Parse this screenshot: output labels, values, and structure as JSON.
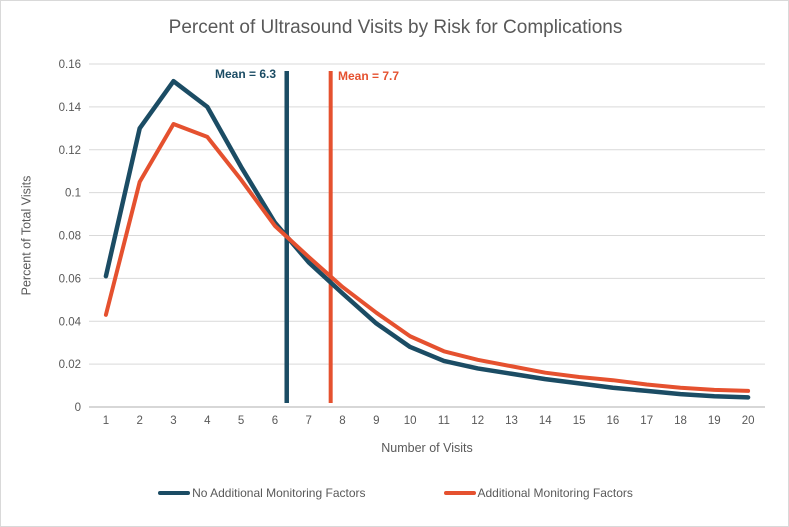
{
  "title": "Percent of Ultrasound Visits by Risk for Complications",
  "colors": {
    "blue": "#1B4C64",
    "red": "#E5512F",
    "title_text": "#595959",
    "axis_text": "#595959",
    "gridline": "#D9D9D9",
    "axis_line": "#BFBFBF",
    "border": "#D9D9D9"
  },
  "annotations": {
    "blue_mean_label": "Mean = 6.3",
    "red_mean_label": "Mean = 7.7"
  },
  "legend": [
    {
      "label": "No Additional Monitoring Factors",
      "color": "blue"
    },
    {
      "label": "Additional Monitoring Factors",
      "color": "red"
    }
  ],
  "chart_data": {
    "type": "line",
    "title": "Percent of Ultrasound Visits by Risk for Complications",
    "xlabel": "Number of Visits",
    "ylabel": "Percent of Total Visits",
    "x": [
      1,
      2,
      3,
      4,
      5,
      6,
      7,
      8,
      9,
      10,
      11,
      12,
      13,
      14,
      15,
      16,
      17,
      18,
      19,
      20
    ],
    "series": [
      {
        "name": "No Additional Monitoring Factors",
        "color": "blue",
        "values": [
          0.061,
          0.13,
          0.152,
          0.14,
          0.112,
          0.086,
          0.0675,
          0.053,
          0.039,
          0.028,
          0.0215,
          0.018,
          0.0155,
          0.013,
          0.011,
          0.009,
          0.0075,
          0.006,
          0.005,
          0.0045
        ]
      },
      {
        "name": "Additional Monitoring Factors",
        "color": "red",
        "values": [
          0.043,
          0.105,
          0.132,
          0.126,
          0.106,
          0.0845,
          0.07,
          0.056,
          0.044,
          0.033,
          0.026,
          0.022,
          0.019,
          0.016,
          0.014,
          0.0125,
          0.0105,
          0.009,
          0.008,
          0.0075
        ]
      }
    ],
    "ylim": [
      0,
      0.16
    ],
    "ytick_step": 0.02,
    "ytick_labels": [
      "0",
      "0.02",
      "0.04",
      "0.06",
      "0.08",
      "0.1",
      "0.12",
      "0.14",
      "0.16"
    ],
    "grid": true,
    "legend_position": "bottom",
    "vlines": [
      {
        "x": 6.35,
        "label": "Mean = 6.3",
        "color": "blue"
      },
      {
        "x": 7.65,
        "label": "Mean = 7.7",
        "color": "red"
      }
    ]
  }
}
